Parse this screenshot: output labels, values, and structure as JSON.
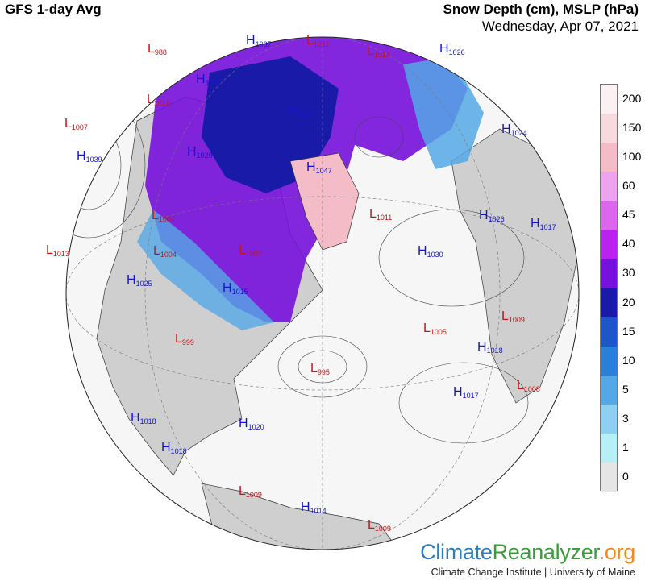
{
  "header": {
    "left_title": "GFS 1-day Avg",
    "right_title": "Snow Depth (cm), MSLP (hPa)",
    "date": "Wednesday, Apr 07, 2021"
  },
  "legend": {
    "labels": [
      "200",
      "150",
      "100",
      "60",
      "45",
      "40",
      "30",
      "20",
      "15",
      "10",
      "5",
      "3",
      "1",
      "0"
    ],
    "colors": [
      "#fbf1f3",
      "#f7d9de",
      "#f4bcc6",
      "#eea3ee",
      "#dd66ee",
      "#bb22ee",
      "#7711dd",
      "#1a1aa8",
      "#1e55c8",
      "#2a7fd8",
      "#55a8e6",
      "#8fd0f2",
      "#b6f0f6",
      "#e5e5e5"
    ]
  },
  "pressure_systems": [
    {
      "type": "L",
      "value": "988"
    },
    {
      "type": "H",
      "value": "1037"
    },
    {
      "type": "L",
      "value": "1011"
    },
    {
      "type": "L",
      "value": "1014"
    },
    {
      "type": "H",
      "value": "1026"
    },
    {
      "type": "L",
      "value": "1016"
    },
    {
      "type": "H",
      "value": "1038"
    },
    {
      "type": "L",
      "value": "1007"
    },
    {
      "type": "H",
      "value": "1039"
    },
    {
      "type": "H",
      "value": "1027"
    },
    {
      "type": "H",
      "value": "1024"
    },
    {
      "type": "H",
      "value": "1029"
    },
    {
      "type": "H",
      "value": "1047"
    },
    {
      "type": "L",
      "value": "1004"
    },
    {
      "type": "L",
      "value": "1011"
    },
    {
      "type": "H",
      "value": "1026"
    },
    {
      "type": "H",
      "value": "1017"
    },
    {
      "type": "L",
      "value": "1013"
    },
    {
      "type": "L",
      "value": "1004"
    },
    {
      "type": "L",
      "value": "1007"
    },
    {
      "type": "H",
      "value": "1030"
    },
    {
      "type": "H",
      "value": "1025"
    },
    {
      "type": "H",
      "value": "1015"
    },
    {
      "type": "L",
      "value": "999"
    },
    {
      "type": "L",
      "value": "1005"
    },
    {
      "type": "L",
      "value": "1009"
    },
    {
      "type": "H",
      "value": "1018"
    },
    {
      "type": "L",
      "value": "995"
    },
    {
      "type": "L",
      "value": "1008"
    },
    {
      "type": "H",
      "value": "1017"
    },
    {
      "type": "H",
      "value": "1018"
    },
    {
      "type": "H",
      "value": "1020"
    },
    {
      "type": "H",
      "value": "1018"
    },
    {
      "type": "L",
      "value": "1009"
    },
    {
      "type": "H",
      "value": "1014"
    },
    {
      "type": "L",
      "value": "1009"
    }
  ],
  "branding": {
    "part1": "Climate",
    "part2": "Reanalyzer",
    "part3": ".org",
    "subtitle": "Climate Change Institute | University of Maine"
  },
  "colors": {
    "high": "#1515d0",
    "low": "#c81414",
    "ocean": "#f6f6f6",
    "land": "#d2d2d2"
  }
}
